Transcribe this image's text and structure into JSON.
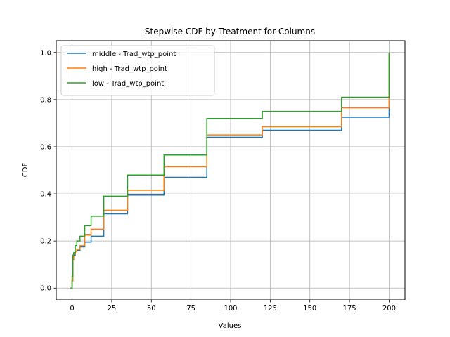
{
  "chart_data": {
    "type": "line",
    "step": true,
    "title": "Stepwise CDF by Treatment for Columns",
    "xlabel": "Values",
    "ylabel": "CDF",
    "xlim": [
      -10,
      210
    ],
    "ylim": [
      -0.05,
      1.05
    ],
    "xticks": [
      0,
      25,
      50,
      75,
      100,
      125,
      150,
      175,
      200
    ],
    "yticks": [
      0.0,
      0.2,
      0.4,
      0.6,
      0.8,
      1.0
    ],
    "xtick_labels": [
      "0",
      "25",
      "50",
      "75",
      "100",
      "125",
      "150",
      "175",
      "200"
    ],
    "ytick_labels": [
      "0.0",
      "0.2",
      "0.4",
      "0.6",
      "0.8",
      "1.0"
    ],
    "grid": true,
    "legend_position": "top-left",
    "series": [
      {
        "name": "middle - Trad_wtp_point",
        "color": "#1f77b4",
        "x": [
          -1,
          0,
          0.5,
          1,
          2,
          3,
          5,
          8,
          12,
          20,
          35,
          58,
          85,
          120,
          170,
          200,
          200
        ],
        "y": [
          0.0,
          0.03,
          0.12,
          0.14,
          0.155,
          0.16,
          0.175,
          0.195,
          0.22,
          0.315,
          0.395,
          0.47,
          0.64,
          0.67,
          0.725,
          0.725,
          1.0
        ]
      },
      {
        "name": "high - Trad_wtp_point",
        "color": "#ff7f0e",
        "x": [
          -1,
          0,
          0.5,
          1,
          2,
          3,
          5,
          8,
          12,
          20,
          35,
          58,
          85,
          120,
          170,
          200,
          200
        ],
        "y": [
          0.0,
          0.03,
          0.12,
          0.145,
          0.155,
          0.165,
          0.18,
          0.225,
          0.25,
          0.33,
          0.415,
          0.515,
          0.65,
          0.685,
          0.765,
          0.765,
          1.0
        ]
      },
      {
        "name": "low - Trad_wtp_point",
        "color": "#2ca02c",
        "x": [
          -1,
          0,
          0.5,
          1,
          2,
          3,
          5,
          8,
          12,
          20,
          35,
          58,
          85,
          120,
          170,
          200,
          200
        ],
        "y": [
          0.0,
          0.05,
          0.14,
          0.15,
          0.18,
          0.2,
          0.22,
          0.265,
          0.305,
          0.39,
          0.48,
          0.565,
          0.72,
          0.75,
          0.81,
          0.81,
          1.0
        ]
      }
    ]
  }
}
